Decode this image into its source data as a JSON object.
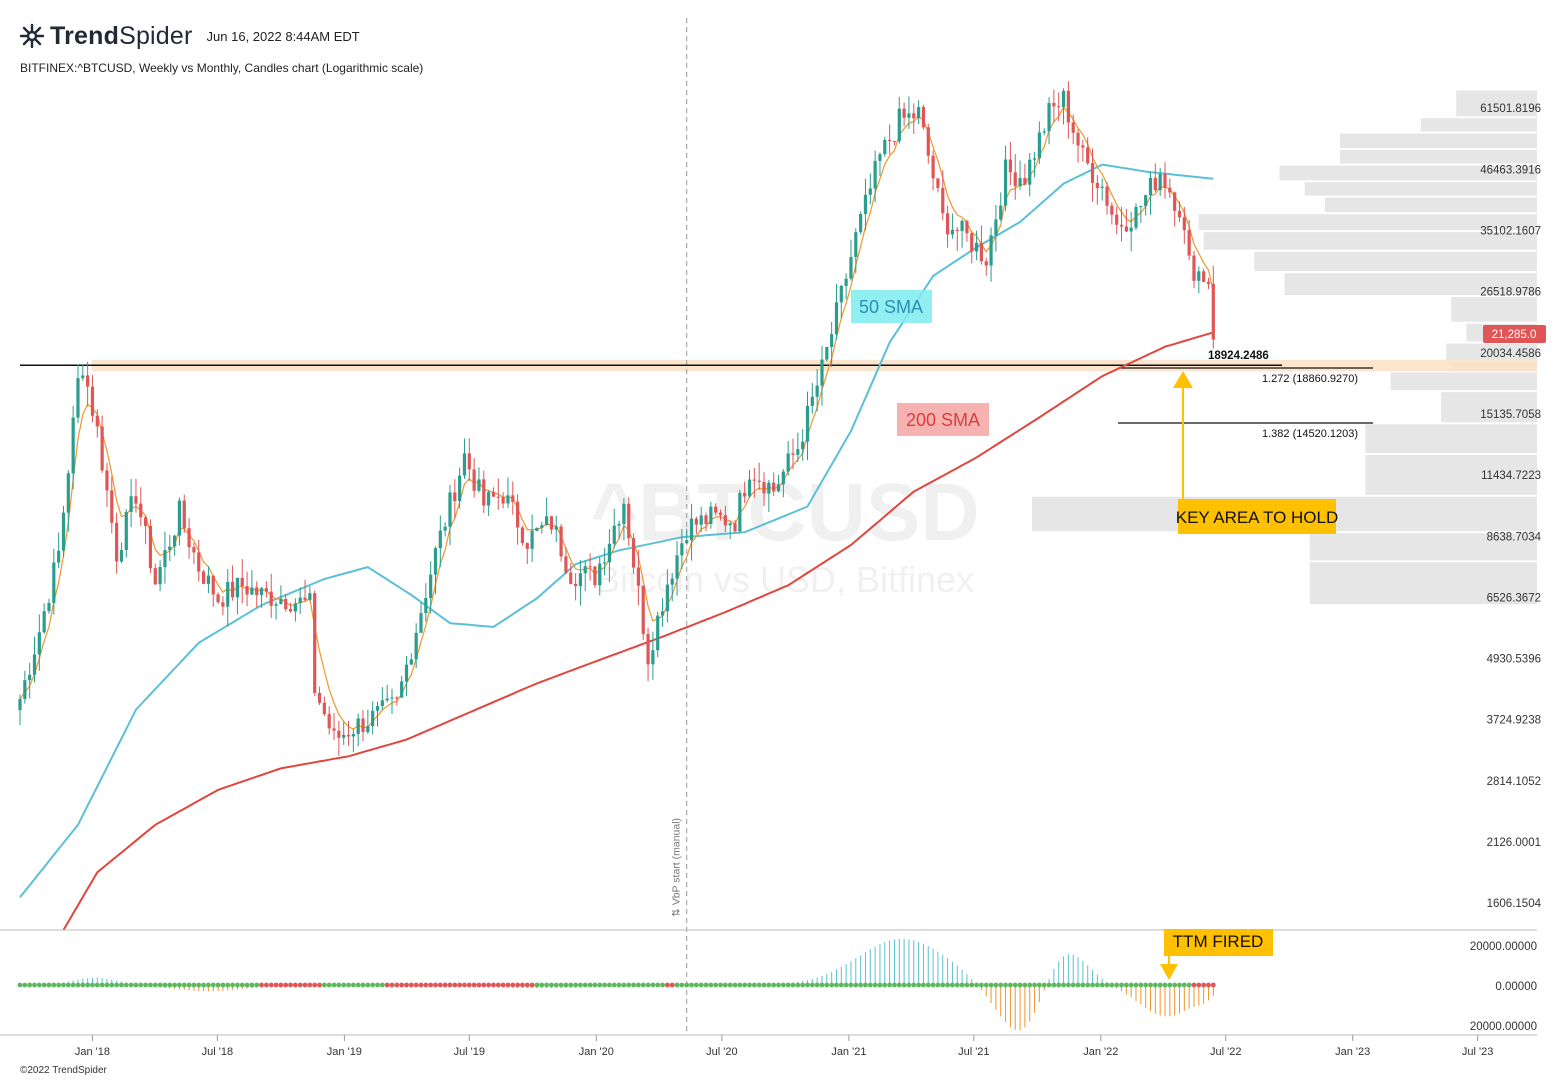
{
  "header": {
    "brand_bold": "Trend",
    "brand_light": "Spider",
    "timestamp": "Jun 16, 2022 8:44AM EDT",
    "subtitle": "BITFINEX:^BTCUSD, Weekly vs Monthly, Candles chart (Logarithmic scale)",
    "copyright": "©2022 TrendSpider"
  },
  "watermark": {
    "symbol": "^BTCUSD",
    "name": "Bitcoin vs USD, Bitfinex"
  },
  "colors": {
    "up": "#2a9d8f",
    "down": "#e05555",
    "sma50": "#5bc0d6",
    "sma200": "#e0463e",
    "ema_short": "#f0962c",
    "highlight_zone": "#fbe0c6",
    "volume_profile": "#e6e6e6",
    "callout": "#ffc000"
  },
  "chart_data": {
    "type": "line",
    "scale": "log",
    "ylim": [
      1420,
      70000
    ],
    "x_start": "2017-09-18",
    "x_end": "2023-09-25",
    "y_ticks": [
      "61501.8196",
      "46463.3916",
      "35102.1607",
      "26518.9786",
      "20034.4586",
      "15135.7058",
      "11434.7223",
      "8638.7034",
      "6526.3672",
      "4930.5396",
      "3724.9238",
      "2814.1052",
      "2126.0001",
      "1606.1504"
    ],
    "x_ticks": [
      "Jan '18",
      "Jul '18",
      "Jan '19",
      "Jul '19",
      "Jan '20",
      "Jul '20",
      "Jan '21",
      "Jul '21",
      "Jan '22",
      "Jul '22",
      "Jan '23",
      "Jul '23"
    ],
    "last_price_label": "21,285.0",
    "vbp_label": "⇅ VbP start (manual)",
    "vbp_start": "2020-05-11",
    "levels": [
      {
        "label": "18924.2486",
        "value": 18924.2486
      },
      {
        "label": "1.272 (18860.9270)",
        "value": 18860.927
      },
      {
        "label": "1.382 (14520.1203)",
        "value": 14520.1203
      }
    ],
    "series": [
      {
        "name": "Price",
        "points": [
          [
            "2017-09-18",
            4100
          ],
          [
            "2017-10-16",
            5600
          ],
          [
            "2017-11-13",
            8000
          ],
          [
            "2017-12-11",
            17500
          ],
          [
            "2017-12-18",
            19000
          ],
          [
            "2018-01-08",
            14000
          ],
          [
            "2018-02-05",
            8000
          ],
          [
            "2018-03-05",
            10500
          ],
          [
            "2018-04-02",
            7000
          ],
          [
            "2018-05-07",
            9600
          ],
          [
            "2018-06-04",
            7500
          ],
          [
            "2018-07-02",
            6500
          ],
          [
            "2018-08-06",
            6900
          ],
          [
            "2018-09-03",
            6600
          ],
          [
            "2018-10-08",
            6500
          ],
          [
            "2018-11-12",
            6300
          ],
          [
            "2018-11-19",
            4300
          ],
          [
            "2018-12-17",
            3400
          ],
          [
            "2019-01-14",
            3600
          ],
          [
            "2019-02-18",
            3800
          ],
          [
            "2019-03-18",
            4000
          ],
          [
            "2019-04-08",
            5200
          ],
          [
            "2019-05-13",
            8000
          ],
          [
            "2019-06-24",
            12500
          ],
          [
            "2019-07-22",
            10000
          ],
          [
            "2019-08-19",
            10500
          ],
          [
            "2019-09-23",
            8500
          ],
          [
            "2019-10-28",
            9200
          ],
          [
            "2019-11-25",
            7300
          ],
          [
            "2019-12-30",
            7200
          ],
          [
            "2020-02-10",
            10200
          ],
          [
            "2020-03-16",
            5000
          ],
          [
            "2020-04-13",
            7000
          ],
          [
            "2020-05-11",
            9000
          ],
          [
            "2020-06-15",
            9400
          ],
          [
            "2020-07-20",
            9300
          ],
          [
            "2020-08-10",
            11800
          ],
          [
            "2020-09-14",
            10700
          ],
          [
            "2020-10-19",
            13000
          ],
          [
            "2020-11-23",
            18500
          ],
          [
            "2020-12-21",
            26000
          ],
          [
            "2021-01-11",
            34000
          ],
          [
            "2021-02-15",
            49000
          ],
          [
            "2021-03-15",
            58000
          ],
          [
            "2021-04-12",
            60000
          ],
          [
            "2021-05-17",
            37000
          ],
          [
            "2021-06-21",
            34000
          ],
          [
            "2021-07-19",
            31000
          ],
          [
            "2021-08-16",
            46000
          ],
          [
            "2021-09-13",
            45000
          ],
          [
            "2021-10-18",
            60000
          ],
          [
            "2021-11-08",
            64000
          ],
          [
            "2021-12-06",
            49000
          ],
          [
            "2022-01-03",
            43000
          ],
          [
            "2022-01-24",
            36000
          ],
          [
            "2022-02-21",
            38000
          ],
          [
            "2022-03-28",
            46000
          ],
          [
            "2022-04-25",
            39000
          ],
          [
            "2022-05-09",
            30000
          ],
          [
            "2022-06-06",
            28000
          ],
          [
            "2022-06-13",
            21285
          ]
        ]
      },
      {
        "name": "50 SMA",
        "points": [
          [
            "2017-09-18",
            1650
          ],
          [
            "2017-12-11",
            2300
          ],
          [
            "2018-03-05",
            3900
          ],
          [
            "2018-06-04",
            5300
          ],
          [
            "2018-09-03",
            6300
          ],
          [
            "2018-12-03",
            7100
          ],
          [
            "2019-02-04",
            7500
          ],
          [
            "2019-04-08",
            6600
          ],
          [
            "2019-06-03",
            5800
          ],
          [
            "2019-08-05",
            5700
          ],
          [
            "2019-10-07",
            6500
          ],
          [
            "2019-12-02",
            7600
          ],
          [
            "2020-02-03",
            8100
          ],
          [
            "2020-05-04",
            8600
          ],
          [
            "2020-08-03",
            8800
          ],
          [
            "2020-11-02",
            9900
          ],
          [
            "2021-01-04",
            14000
          ],
          [
            "2021-03-01",
            21000
          ],
          [
            "2021-05-03",
            28500
          ],
          [
            "2021-07-05",
            32500
          ],
          [
            "2021-09-06",
            36500
          ],
          [
            "2021-11-08",
            43500
          ],
          [
            "2022-01-03",
            47500
          ],
          [
            "2022-03-07",
            46000
          ],
          [
            "2022-06-13",
            44500
          ]
        ]
      },
      {
        "name": "200 SMA",
        "points": [
          [
            "2017-11-20",
            1420
          ],
          [
            "2018-01-08",
            1850
          ],
          [
            "2018-04-02",
            2300
          ],
          [
            "2018-07-02",
            2700
          ],
          [
            "2018-10-01",
            2980
          ],
          [
            "2019-01-07",
            3150
          ],
          [
            "2019-04-01",
            3400
          ],
          [
            "2019-07-01",
            3850
          ],
          [
            "2019-10-07",
            4400
          ],
          [
            "2020-01-06",
            4900
          ],
          [
            "2020-04-06",
            5450
          ],
          [
            "2020-07-06",
            6100
          ],
          [
            "2020-10-05",
            6900
          ],
          [
            "2021-01-04",
            8300
          ],
          [
            "2021-04-05",
            10600
          ],
          [
            "2021-07-05",
            12400
          ],
          [
            "2021-10-04",
            14900
          ],
          [
            "2022-01-03",
            18000
          ],
          [
            "2022-04-04",
            20600
          ],
          [
            "2022-06-13",
            22000
          ]
        ]
      }
    ],
    "annotations": [
      {
        "text": "50 SMA"
      },
      {
        "text": "200 SMA"
      },
      {
        "text": "KEY AREA TO HOLD"
      },
      {
        "text": "TTM FIRED"
      }
    ],
    "volume_profile": [
      {
        "low": 59000,
        "high": 67000,
        "volume": 0.16
      },
      {
        "low": 55000,
        "high": 59000,
        "volume": 0.23
      },
      {
        "low": 51000,
        "high": 55000,
        "volume": 0.39
      },
      {
        "low": 47500,
        "high": 51000,
        "volume": 0.39
      },
      {
        "low": 44000,
        "high": 47500,
        "volume": 0.51
      },
      {
        "low": 41000,
        "high": 44000,
        "volume": 0.46
      },
      {
        "low": 38000,
        "high": 41000,
        "volume": 0.42
      },
      {
        "low": 35000,
        "high": 38000,
        "volume": 0.67
      },
      {
        "low": 32000,
        "high": 35000,
        "volume": 0.66
      },
      {
        "low": 29000,
        "high": 32000,
        "volume": 0.56
      },
      {
        "low": 26000,
        "high": 29000,
        "volume": 0.5
      },
      {
        "low": 23000,
        "high": 26000,
        "volume": 0.17
      },
      {
        "low": 21000,
        "high": 23000,
        "volume": 0.14
      },
      {
        "low": 19300,
        "high": 21000,
        "volume": 0.18
      },
      {
        "low": 18400,
        "high": 19300,
        "volume": 0.17
      },
      {
        "low": 16800,
        "high": 18400,
        "volume": 0.29
      },
      {
        "low": 14500,
        "high": 16800,
        "volume": 0.19
      },
      {
        "low": 12600,
        "high": 14500,
        "volume": 0.34
      },
      {
        "low": 10400,
        "high": 12600,
        "volume": 0.34
      },
      {
        "low": 8800,
        "high": 10400,
        "volume": 1.0
      },
      {
        "low": 7700,
        "high": 8800,
        "volume": 0.45
      },
      {
        "low": 6300,
        "high": 7700,
        "volume": 0.45
      }
    ],
    "oscillator": {
      "name": "TTM Squeeze",
      "ylim": [
        -20000,
        20000
      ],
      "ticks": [
        "20000.00000",
        "0.00000",
        "20000.00000"
      ]
    }
  }
}
